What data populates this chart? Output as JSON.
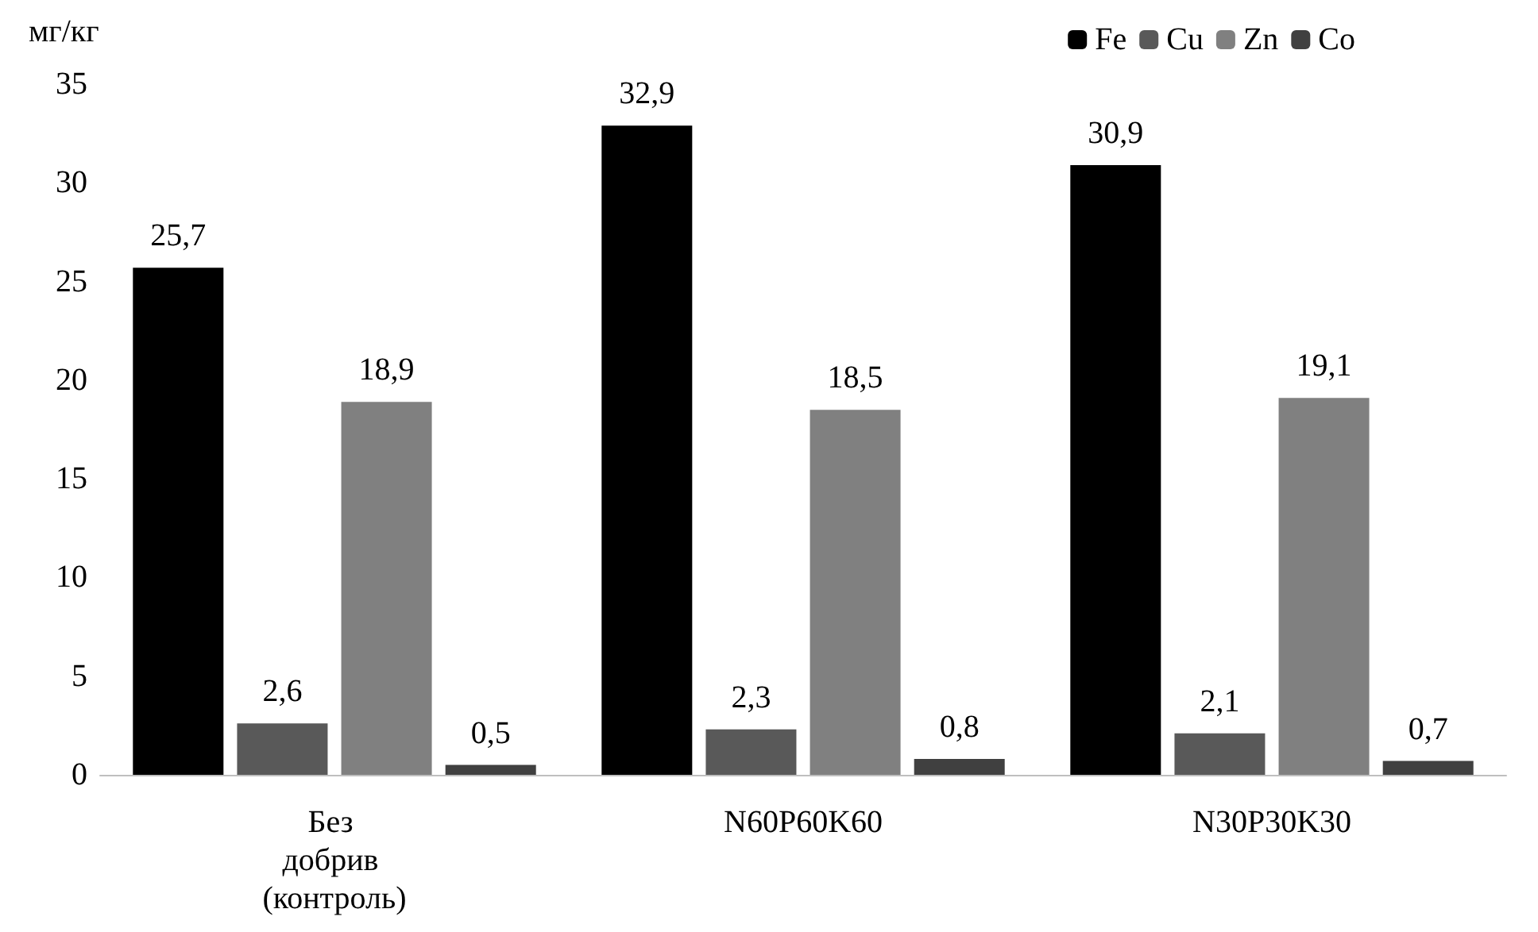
{
  "chart_data": {
    "type": "bar",
    "ylabel": "мг/кг",
    "categories": [
      "Без добрив (контроль)",
      "N60P60K60",
      "N30P30K30"
    ],
    "series": [
      {
        "name": "Fe",
        "color": "#000000",
        "values": [
          25.7,
          32.9,
          30.9
        ],
        "value_labels": [
          "25,7",
          "32,9",
          "30,9"
        ]
      },
      {
        "name": "Cu",
        "color": "#595959",
        "values": [
          2.6,
          2.3,
          2.1
        ],
        "value_labels": [
          "2,6",
          "2,3",
          "2,1"
        ]
      },
      {
        "name": "Zn",
        "color": "#808080",
        "values": [
          18.9,
          18.5,
          19.1
        ],
        "value_labels": [
          "18,9",
          "18,5",
          "19,1"
        ]
      },
      {
        "name": "Co",
        "color": "#404040",
        "values": [
          0.5,
          0.8,
          0.7
        ],
        "value_labels": [
          "0,5",
          "0,8",
          "0,7"
        ]
      }
    ],
    "ylim": [
      0,
      35
    ],
    "yticks": [
      0,
      5,
      10,
      15,
      20,
      25,
      30,
      35
    ],
    "grid": false,
    "legend": "top right"
  }
}
